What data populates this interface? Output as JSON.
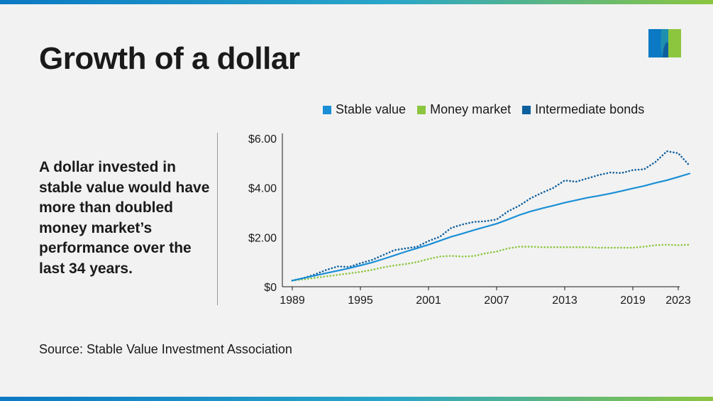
{
  "title": "Growth of a dollar",
  "description": "A dollar invested in stable value would have more than doubled money market’s performance over the last 34 years.",
  "source": "Source: Stable Value Investment Association",
  "colors": {
    "stable_value": "#1a8fd6",
    "money_market": "#8cc63f",
    "intermediate_bonds": "#0e5f9e",
    "axis": "#1a1a1a",
    "background": "#f2f2f2"
  },
  "logo": {
    "icon": "metlife-m-logo",
    "colors": [
      "#0b79c4",
      "#0e5f9e",
      "#8cc63f"
    ]
  },
  "chart_data": {
    "type": "line",
    "title": "",
    "xlabel": "",
    "ylabel": "",
    "xlim": [
      1989,
      2024
    ],
    "ylim": [
      0,
      6
    ],
    "grid": false,
    "legend_position": "top",
    "x_ticks": [
      1989,
      1995,
      2001,
      2007,
      2013,
      2019,
      2023
    ],
    "x_tick_labels": [
      "1989",
      "1995",
      "2001",
      "2007",
      "2013",
      "2019",
      "2023"
    ],
    "y_ticks": [
      0,
      2,
      4,
      6
    ],
    "y_tick_labels": [
      "$0",
      "$2.00",
      "$4.00",
      "$6.00"
    ],
    "series": [
      {
        "name": "Stable value",
        "style": "solid",
        "x": [
          1989,
          1990,
          1991,
          1992,
          1993,
          1994,
          1995,
          1996,
          1997,
          1998,
          1999,
          2000,
          2001,
          2002,
          2003,
          2004,
          2005,
          2006,
          2007,
          2008,
          2009,
          2010,
          2011,
          2012,
          2013,
          2014,
          2015,
          2016,
          2017,
          2018,
          2019,
          2020,
          2021,
          2022,
          2023,
          2024
        ],
        "values": [
          0.25,
          0.35,
          0.45,
          0.55,
          0.65,
          0.75,
          0.86,
          0.98,
          1.12,
          1.27,
          1.42,
          1.56,
          1.7,
          1.86,
          2.02,
          2.15,
          2.29,
          2.42,
          2.55,
          2.72,
          2.9,
          3.05,
          3.17,
          3.28,
          3.4,
          3.5,
          3.6,
          3.68,
          3.77,
          3.87,
          3.98,
          4.08,
          4.2,
          4.31,
          4.44,
          4.58
        ]
      },
      {
        "name": "Money market",
        "style": "dotted",
        "x": [
          1989,
          1990,
          1991,
          1992,
          1993,
          1994,
          1995,
          1996,
          1997,
          1998,
          1999,
          2000,
          2001,
          2002,
          2003,
          2004,
          2005,
          2006,
          2007,
          2008,
          2009,
          2010,
          2011,
          2012,
          2013,
          2014,
          2015,
          2016,
          2017,
          2018,
          2019,
          2020,
          2021,
          2022,
          2023,
          2024
        ],
        "values": [
          0.25,
          0.3,
          0.36,
          0.42,
          0.48,
          0.54,
          0.6,
          0.68,
          0.78,
          0.86,
          0.92,
          1.0,
          1.12,
          1.22,
          1.25,
          1.22,
          1.24,
          1.35,
          1.42,
          1.55,
          1.62,
          1.62,
          1.6,
          1.6,
          1.6,
          1.6,
          1.6,
          1.58,
          1.58,
          1.58,
          1.58,
          1.62,
          1.68,
          1.7,
          1.68,
          1.7
        ]
      },
      {
        "name": "Intermediate bonds",
        "style": "dotted",
        "x": [
          1989,
          1990,
          1991,
          1992,
          1993,
          1994,
          1995,
          1996,
          1997,
          1998,
          1999,
          2000,
          2001,
          2002,
          2003,
          2004,
          2005,
          2006,
          2007,
          2008,
          2009,
          2010,
          2011,
          2012,
          2013,
          2014,
          2015,
          2016,
          2017,
          2018,
          2019,
          2020,
          2021,
          2022,
          2023,
          2024
        ],
        "values": [
          0.25,
          0.35,
          0.5,
          0.68,
          0.82,
          0.8,
          0.95,
          1.08,
          1.28,
          1.48,
          1.55,
          1.62,
          1.85,
          2.02,
          2.38,
          2.52,
          2.62,
          2.65,
          2.72,
          3.05,
          3.28,
          3.58,
          3.8,
          4.0,
          4.3,
          4.25,
          4.38,
          4.52,
          4.62,
          4.6,
          4.72,
          4.75,
          5.05,
          5.48,
          5.4,
          4.9
        ]
      }
    ]
  }
}
